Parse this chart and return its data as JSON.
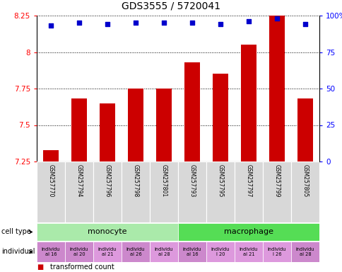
{
  "title": "GDS3555 / 5720041",
  "samples": [
    "GSM257770",
    "GSM257794",
    "GSM257796",
    "GSM257798",
    "GSM257801",
    "GSM257793",
    "GSM257795",
    "GSM257797",
    "GSM257799",
    "GSM257805"
  ],
  "bar_values": [
    7.33,
    7.68,
    7.65,
    7.75,
    7.75,
    7.93,
    7.85,
    8.05,
    8.25,
    7.68
  ],
  "percentile_values": [
    93,
    95,
    94,
    95,
    95,
    95,
    94,
    96,
    98,
    94
  ],
  "ylim": [
    7.25,
    8.25
  ],
  "yticks": [
    7.25,
    7.5,
    7.75,
    8.0,
    8.25
  ],
  "ytick_labels": [
    "7.25",
    "7.5",
    "7.75",
    "8",
    "8.25"
  ],
  "right_yticks": [
    0,
    25,
    50,
    75,
    100
  ],
  "right_ytick_labels": [
    "0",
    "25",
    "50",
    "75",
    "100%"
  ],
  "bar_color": "#cc0000",
  "dot_color": "#0000cc",
  "monocyte_color": "#aaeaaa",
  "macrophage_color": "#55dd55",
  "ind_bg": [
    "#cc88cc",
    "#cc88cc",
    "#dd99dd",
    "#cc88cc",
    "#dd99dd",
    "#cc88cc",
    "#dd99dd",
    "#dd99dd",
    "#dd99dd",
    "#cc88cc"
  ],
  "ind_texts": [
    "individu\nal 16",
    "individu\nal 20",
    "individu\nal 21",
    "individu\nal 26",
    "individu\nal 28",
    "individu\nal 16",
    "individu\nl 20",
    "individu\nal 21",
    "individu\nl 26",
    "individu\nal 28"
  ],
  "baseline": 7.25,
  "sample_box_color": "#d8d8d8",
  "bg_color": "#ffffff"
}
